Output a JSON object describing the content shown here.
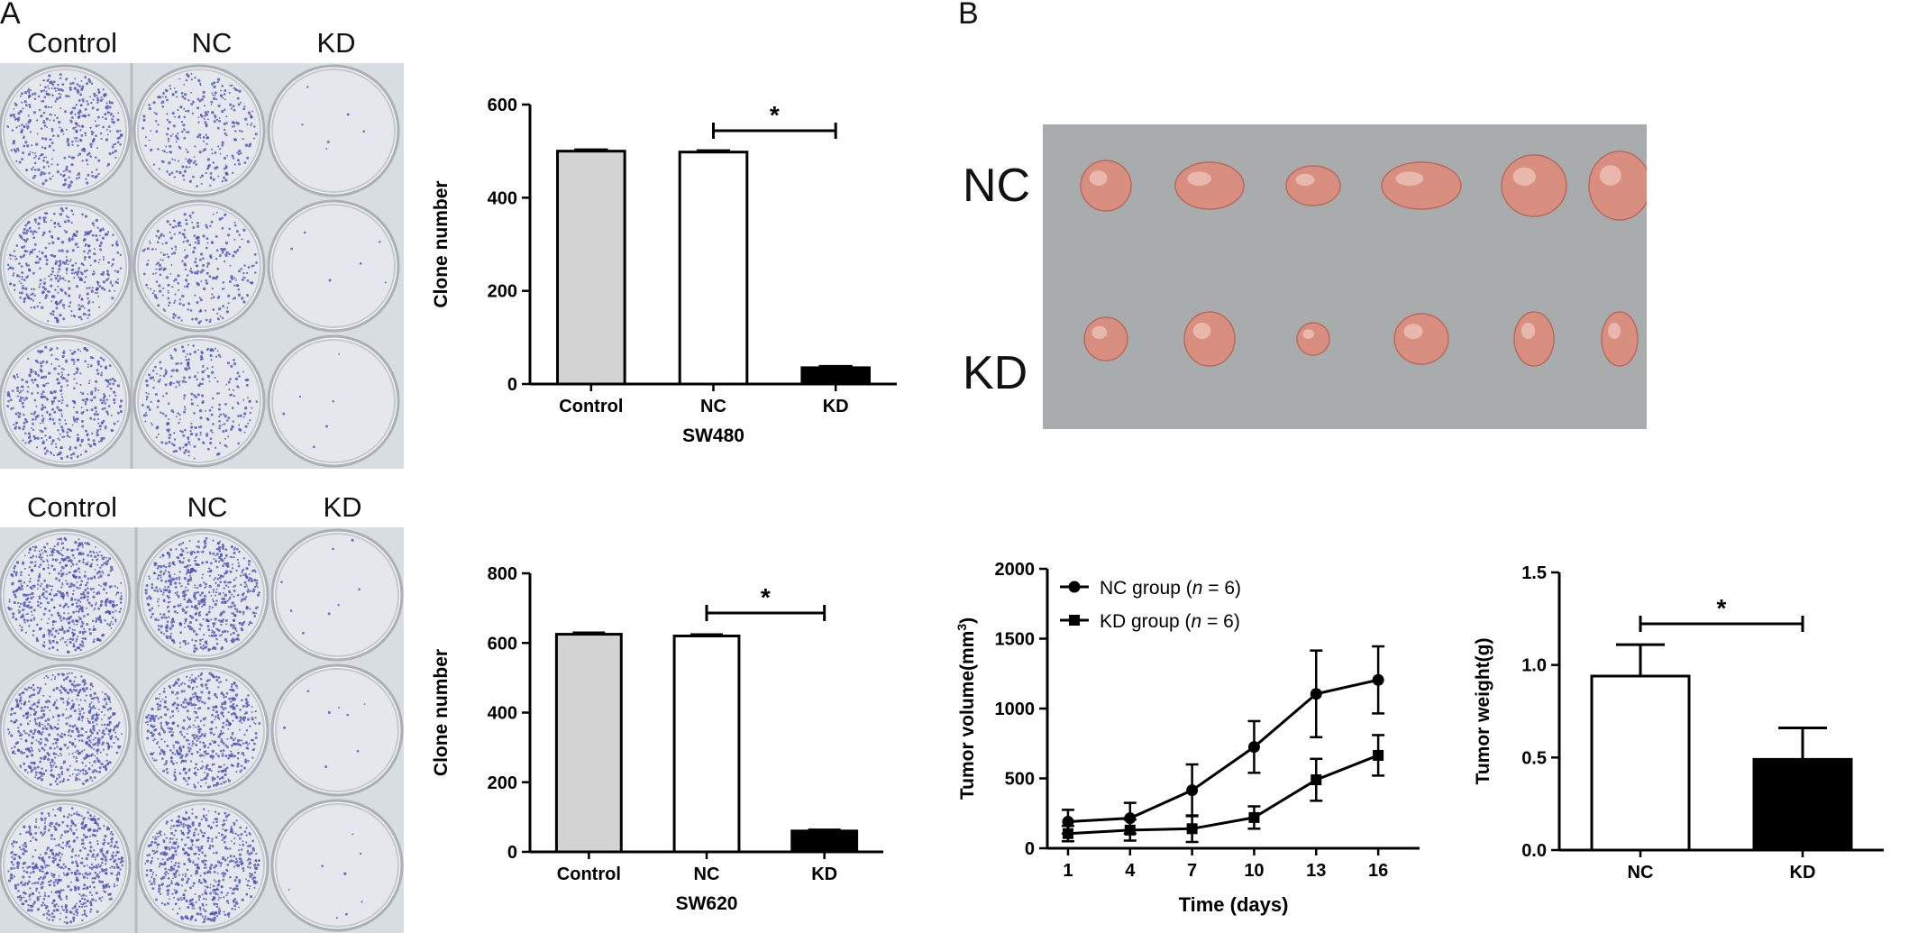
{
  "panels": {
    "a_label": "A",
    "b_label": "B"
  },
  "plates": {
    "top_labels": [
      "Control",
      "NC",
      "KD"
    ],
    "bottom_labels": [
      "Control",
      "NC",
      "KD"
    ]
  },
  "tumor_photo": {
    "row_labels": [
      "NC",
      "KD"
    ]
  },
  "colors": {
    "control_fill": "#d3d3d3",
    "nc_fill": "#ffffff",
    "kd_fill": "#000000",
    "stroke": "#000000",
    "plate_bg": "#dfe3e6",
    "photo_bg": "#a9acad",
    "colony": "#4a4fb0",
    "tumor": "#d88f80"
  },
  "chart_data": [
    {
      "id": "sw480",
      "type": "bar",
      "categories": [
        "Control",
        "NC",
        "KD"
      ],
      "values": [
        500,
        498,
        35
      ],
      "errors": [
        3,
        3,
        3
      ],
      "xlabel": "SW480",
      "ylabel": "Clone number",
      "ylim": [
        0,
        600
      ],
      "yticks": [
        0,
        200,
        400,
        600
      ],
      "significance": {
        "from": 1,
        "to": 2,
        "label": "*"
      }
    },
    {
      "id": "sw620",
      "type": "bar",
      "categories": [
        "Control",
        "NC",
        "KD"
      ],
      "values": [
        625,
        620,
        60
      ],
      "errors": [
        4,
        4,
        3
      ],
      "xlabel": "SW620",
      "ylabel": "Clone number",
      "ylim": [
        0,
        800
      ],
      "yticks": [
        0,
        200,
        400,
        600,
        800
      ],
      "significance": {
        "from": 1,
        "to": 2,
        "label": "*"
      }
    },
    {
      "id": "tumor_volume",
      "type": "line",
      "x": [
        1,
        4,
        7,
        10,
        13,
        16
      ],
      "series": [
        {
          "name": "NC group",
          "n_label": "n = 6",
          "marker": "circle",
          "values": [
            190,
            215,
            415,
            725,
            1105,
            1205
          ],
          "errors": [
            85,
            110,
            185,
            185,
            310,
            240
          ]
        },
        {
          "name": "KD group",
          "n_label": "n = 6",
          "marker": "square",
          "values": [
            105,
            130,
            140,
            220,
            490,
            665
          ],
          "errors": [
            55,
            75,
            95,
            80,
            150,
            145
          ]
        }
      ],
      "xlabel": "Time (days)",
      "ylabel": "Tumor volume(mm3)",
      "ylim": [
        0,
        2000
      ],
      "yticks": [
        0,
        500,
        1000,
        1500,
        2000
      ],
      "legend": "top-left"
    },
    {
      "id": "tumor_weight",
      "type": "bar",
      "categories": [
        "NC",
        "KD"
      ],
      "values": [
        0.94,
        0.49
      ],
      "errors": [
        0.17,
        0.17
      ],
      "ylabel": "Tumor weight(g)",
      "ylim": [
        0,
        1.5
      ],
      "yticks": [
        "0.0",
        "0.5",
        "1.0",
        "1.5"
      ],
      "significance": {
        "from": 0,
        "to": 1,
        "label": "*"
      }
    }
  ]
}
